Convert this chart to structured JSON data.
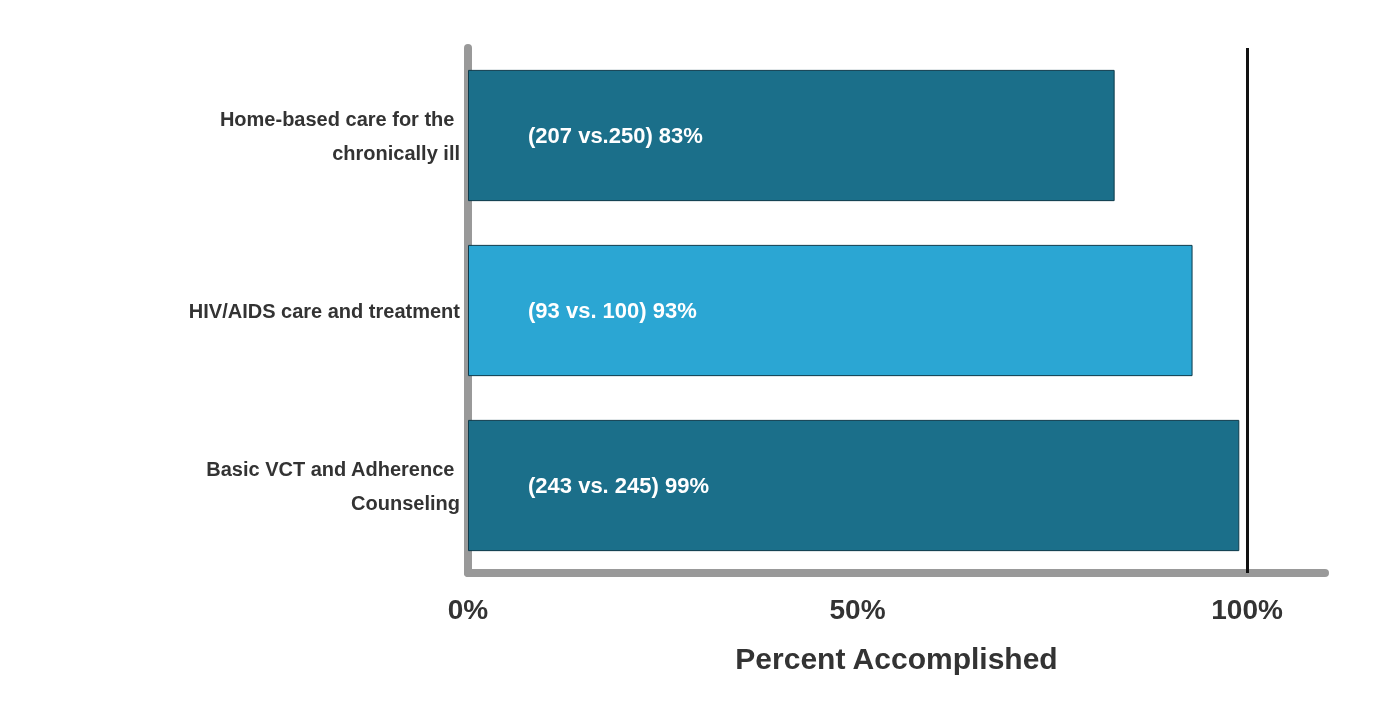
{
  "chart_data": {
    "type": "bar",
    "orientation": "horizontal",
    "xlabel": "Percent Accomplished",
    "categories": [
      "Home-based care for the chronically ill",
      "HIV/AIDS care and treatment",
      "Basic VCT and Adherence Counseling"
    ],
    "values": [
      83,
      93,
      99
    ],
    "colors": [
      "#1b6f8a",
      "#2ba6d3",
      "#1b6f8a"
    ],
    "value_labels": [
      "(207 vs.250) 83%",
      "(93 vs. 100) 93%",
      "(243 vs. 245) 99%"
    ],
    "xlim": [
      0,
      110
    ],
    "xticks": [
      {
        "value": 0,
        "label": "0%"
      },
      {
        "value": 50,
        "label": "50%"
      },
      {
        "value": 100,
        "label": "100%"
      }
    ],
    "ref_lines": [
      {
        "axis": "x",
        "value": 100,
        "label": null,
        "color": "#111111"
      }
    ],
    "grid": false
  }
}
